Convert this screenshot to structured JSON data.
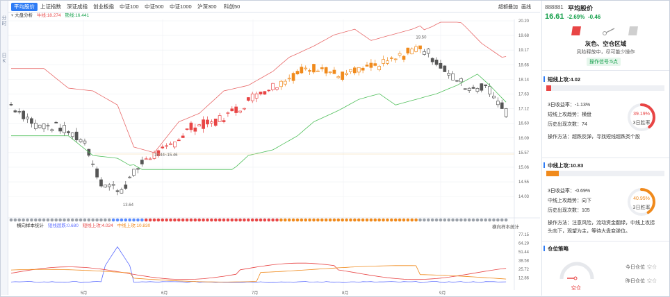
{
  "rail": {
    "top": "分\n时",
    "bottom": "日\nK"
  },
  "tabs": [
    {
      "label": "平均股价",
      "active": true
    },
    {
      "label": "上证指数"
    },
    {
      "label": "深证成指"
    },
    {
      "label": "创业板指"
    },
    {
      "label": "中证100"
    },
    {
      "label": "中证500"
    },
    {
      "label": "中证1000"
    },
    {
      "label": "沪深300"
    },
    {
      "label": "科创50"
    }
  ],
  "top_right": {
    "overlay": "超额叠加",
    "draw": "画线"
  },
  "legend_top": {
    "toggle": "▾",
    "name": "大盘分析",
    "long_label": "牛线:18.274",
    "short_label": "熊线:16.441"
  },
  "legend_bottom": {
    "name": "横向样本统计",
    "short": "短线超跌:0.680",
    "mid_up": "短线上攻:4.024",
    "long_up": "中线上攻:10.830",
    "right": "横向样本统计"
  },
  "price_axis": [
    "20.20",
    "19.68",
    "19.17",
    "18.66",
    "18.14",
    "17.63",
    "17.12",
    "16.60",
    "16.09",
    "15.57",
    "15.06",
    "14.55",
    "14.03"
  ],
  "ind_axis": [
    "77.15",
    "64.29",
    "51.44",
    "38.58",
    "25.72",
    "12.86"
  ],
  "months": [
    "5月",
    "6月",
    "7月",
    "8月",
    "9月"
  ],
  "annotations": {
    "high": "19.50",
    "low": "13.64",
    "range": "15.44~15.46"
  },
  "header": {
    "code": "888881",
    "name": "平均股价",
    "price": "16.61",
    "pct": "-2.69%",
    "change": "-0.46"
  },
  "status": {
    "title": "灰色、空仓区域",
    "desc": "风险释放中，尽可能少操作",
    "signal": "操作信号:5点"
  },
  "short_up": {
    "title": "短线上攻:4.02",
    "bar_fill": 0.04,
    "ret3": "3日收益率：-1.13%",
    "trend": "短线上攻趋势：横盘",
    "count": "历史出现次数：74",
    "method": "操作方法：超跌反弹，寻找短线超跌类个股",
    "gauge_pct": "39.19%",
    "gauge_label": "3日胜率",
    "gauge_value": 0.3919,
    "color": "#e84545"
  },
  "mid_up": {
    "title": "中线上攻:10.83",
    "bar_fill": 0.108,
    "ret3": "3日收益率：-0.69%",
    "trend": "中线上攻趋势：向下",
    "count": "历史出现次数：105",
    "method1": "操作方法：注意风险，流动资金翻绿，中线上攻拐",
    "method2": "头向下，观望为主，等待大盘变弹位。",
    "gauge_pct": "40.95%",
    "gauge_label": "3日胜率",
    "gauge_value": 0.4095,
    "color": "#f08a1c"
  },
  "position": {
    "title": "仓位策略",
    "gauge_label": "空仓",
    "today": "今日仓位",
    "today_val": "空仓",
    "yesterday": "昨日仓位",
    "yesterday_val": "空仓"
  },
  "colors": {
    "up": "#e84545",
    "mid": "#f08a1c",
    "down": "#555555",
    "bull": "#e86a6a",
    "bear": "#4fbf5a",
    "accent": "#2d7bf5",
    "green": "#14a04a"
  }
}
